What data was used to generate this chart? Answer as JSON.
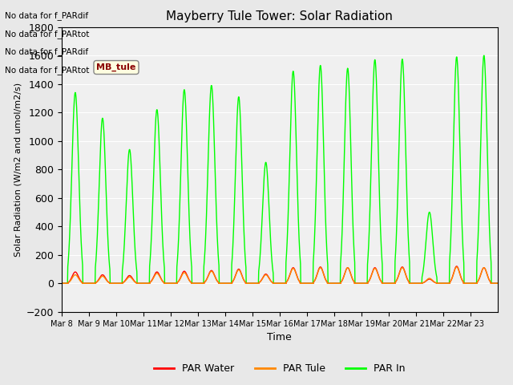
{
  "title": "Mayberry Tule Tower: Solar Radiation",
  "ylabel": "Solar Radiation (W/m2 and umol/m2/s)",
  "xlabel": "Time",
  "ylim": [
    -200,
    1800
  ],
  "yticks": [
    -200,
    0,
    200,
    400,
    600,
    800,
    1000,
    1200,
    1400,
    1600,
    1800
  ],
  "x_tick_labels": [
    "Mar 8",
    "Mar 9",
    "Mar 10",
    "Mar 11",
    "Mar 12",
    "Mar 13",
    "Mar 14",
    "Mar 15",
    "Mar 16",
    "Mar 17",
    "Mar 18",
    "Mar 19",
    "Mar 20",
    "Mar 21",
    "Mar 22",
    "Mar 23"
  ],
  "bg_color": "#e8e8e8",
  "plot_bg_color": "#f0f0f0",
  "text_annotations": [
    "No data for f_PARdif",
    "No data for f_PARtot",
    "No data for f_PARdif",
    "No data for f_PARtot"
  ],
  "legend_labels": [
    "PAR Water",
    "PAR Tule",
    "PAR In"
  ],
  "legend_colors": [
    "#ff0000",
    "#ff8800",
    "#00ff00"
  ],
  "line_colors": {
    "par_water": "#ff0000",
    "par_tule": "#ff8800",
    "par_in": "#00ff00"
  },
  "num_days": 16,
  "peaks_in": [
    1340,
    1160,
    940,
    1220,
    1360,
    1390,
    1310,
    850,
    1490,
    1530,
    1510,
    1570,
    1575,
    500,
    1590,
    1600
  ],
  "peaks_water": [
    80,
    60,
    55,
    80,
    85,
    90,
    100,
    65,
    110,
    115,
    110,
    110,
    115,
    30,
    120,
    110
  ],
  "peaks_tule": [
    60,
    50,
    45,
    70,
    75,
    85,
    95,
    60,
    105,
    110,
    110,
    105,
    110,
    35,
    115,
    110
  ]
}
